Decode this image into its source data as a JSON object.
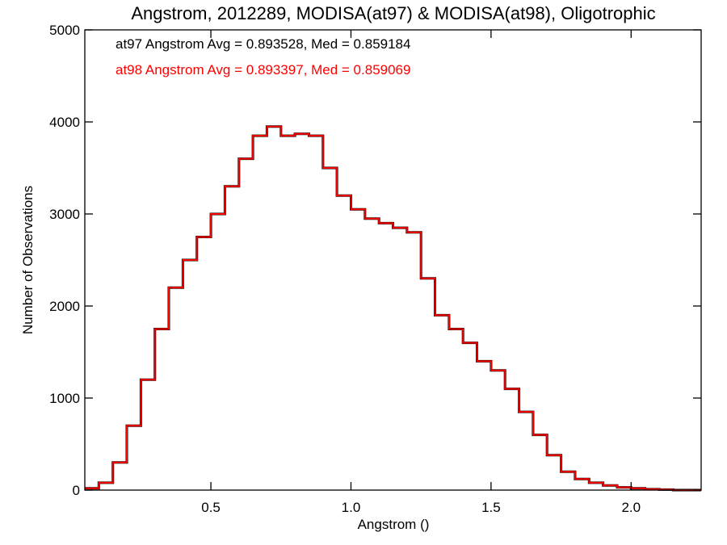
{
  "chart_data": {
    "type": "line",
    "title": "Angstrom, 2012289, MODISA(at97) & MODISA(at98), Oligotrophic",
    "xlabel": "Angstrom ()",
    "ylabel": "Number of Observations",
    "xlim": [
      0.05,
      2.25
    ],
    "ylim": [
      0,
      5000
    ],
    "xticks": [
      0.5,
      1.0,
      1.5,
      2.0
    ],
    "xtick_labels": [
      "0.5",
      "1.0",
      "1.5",
      "2.0"
    ],
    "yticks": [
      0,
      1000,
      2000,
      3000,
      4000,
      5000
    ],
    "ytick_labels": [
      "0",
      "1000",
      "2000",
      "3000",
      "4000",
      "5000"
    ],
    "grid": false,
    "annotations": [
      {
        "text": "at97 Angstrom Avg = 0.893528, Med = 0.859184",
        "color": "#000000"
      },
      {
        "text": "at98 Angstrom Avg = 0.893397, Med = 0.859069",
        "color": "#ff0000"
      }
    ],
    "x": [
      0.05,
      0.1,
      0.15,
      0.2,
      0.25,
      0.3,
      0.35,
      0.4,
      0.45,
      0.5,
      0.55,
      0.6,
      0.65,
      0.7,
      0.75,
      0.8,
      0.85,
      0.9,
      0.95,
      1.0,
      1.05,
      1.1,
      1.15,
      1.2,
      1.25,
      1.3,
      1.35,
      1.4,
      1.45,
      1.5,
      1.55,
      1.6,
      1.65,
      1.7,
      1.75,
      1.8,
      1.85,
      1.9,
      1.95,
      2.0,
      2.05,
      2.1,
      2.15,
      2.2,
      2.25
    ],
    "series": [
      {
        "name": "at97",
        "color": "#000000",
        "values": [
          20,
          80,
          300,
          700,
          1200,
          1750,
          2200,
          2500,
          2750,
          3000,
          3300,
          3600,
          3850,
          3950,
          3850,
          3870,
          3850,
          3500,
          3200,
          3050,
          2950,
          2900,
          2850,
          2800,
          2300,
          1900,
          1750,
          1600,
          1400,
          1300,
          1100,
          850,
          600,
          380,
          200,
          120,
          80,
          50,
          30,
          20,
          10,
          5,
          0,
          0,
          0
        ]
      },
      {
        "name": "at98",
        "color": "#ff0000",
        "values": [
          20,
          80,
          300,
          700,
          1200,
          1750,
          2200,
          2500,
          2750,
          3000,
          3300,
          3600,
          3850,
          3950,
          3850,
          3870,
          3850,
          3500,
          3200,
          3050,
          2950,
          2900,
          2850,
          2800,
          2300,
          1900,
          1750,
          1600,
          1400,
          1300,
          1100,
          850,
          600,
          380,
          200,
          120,
          80,
          50,
          30,
          20,
          10,
          5,
          0,
          0,
          0
        ]
      }
    ]
  }
}
